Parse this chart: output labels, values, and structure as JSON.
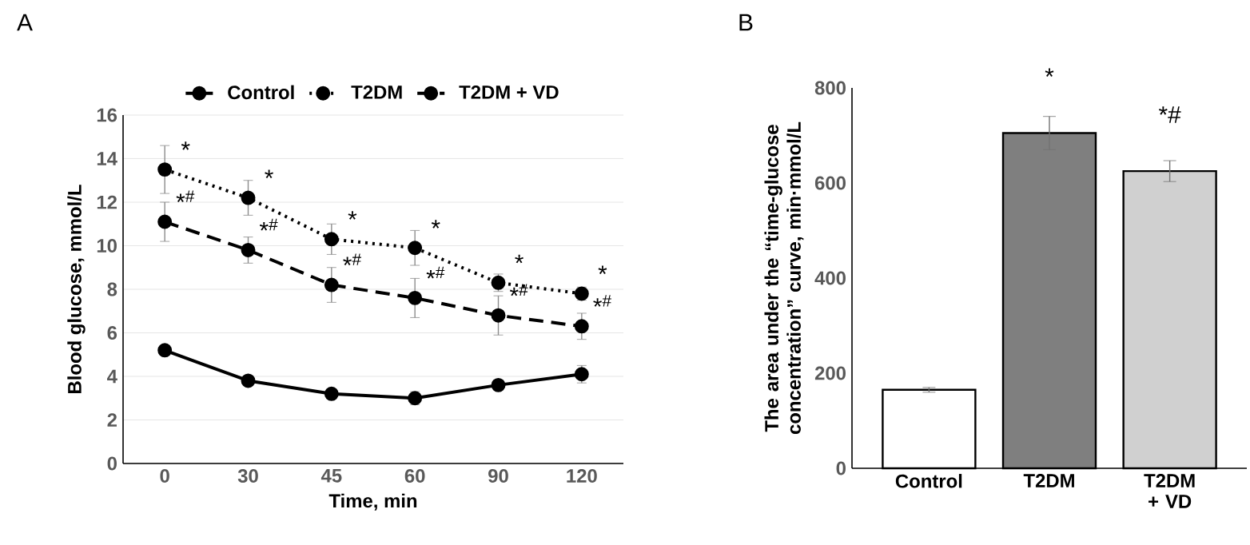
{
  "chart_data": [
    {
      "type": "line",
      "title": "A",
      "xlabel": "Time, min",
      "ylabel": "Blood glucose, mmol/L",
      "categories": [
        "0",
        "30",
        "45",
        "60",
        "90",
        "120"
      ],
      "series": [
        {
          "name": "Control",
          "color": "#000000",
          "line_style": "solid",
          "values": [
            5.2,
            3.8,
            3.2,
            3.0,
            3.6,
            4.1
          ],
          "errors": [
            0.1,
            0.1,
            0.15,
            0.3,
            0.1,
            0.4
          ]
        },
        {
          "name": "T2DM",
          "color": "#000000",
          "line_style": "dotted",
          "values": [
            13.5,
            12.2,
            10.3,
            9.9,
            8.3,
            7.8
          ],
          "errors": [
            1.1,
            0.8,
            0.7,
            0.8,
            0.4,
            0.3
          ]
        },
        {
          "name": "T2DM + VD",
          "color": "#000000",
          "line_style": "dashed",
          "values": [
            11.1,
            9.8,
            8.2,
            7.6,
            6.8,
            6.3
          ],
          "errors": [
            0.9,
            0.6,
            0.8,
            0.9,
            0.9,
            0.6
          ]
        }
      ],
      "ylim": [
        0,
        16
      ],
      "yticks": [
        0,
        2,
        4,
        6,
        8,
        10,
        12,
        14,
        16
      ],
      "grid": "y",
      "legend": "top",
      "marker": "circle",
      "annotations": [
        {
          "text": "*",
          "x": "0",
          "y": 13.5
        },
        {
          "text": "*",
          "x": "30",
          "y": 12.2
        },
        {
          "text": "*",
          "x": "45",
          "y": 10.3
        },
        {
          "text": "*",
          "x": "60",
          "y": 9.9
        },
        {
          "text": "*",
          "x": "90",
          "y": 8.3
        },
        {
          "text": "*",
          "x": "120",
          "y": 7.8
        },
        {
          "text": "*$^{#}$",
          "x": "0",
          "y": 11.1
        },
        {
          "text": "*$^{#}$",
          "x": "30",
          "y": 9.8
        },
        {
          "text": "*$^{#}$",
          "x": "45",
          "y": 8.2
        },
        {
          "text": "*$^{#}$",
          "x": "60",
          "y": 7.6
        },
        {
          "text": "*$^{#}$",
          "x": "90",
          "y": 6.8
        },
        {
          "text": "*$^{#}$",
          "x": "120",
          "y": 6.3
        }
      ]
    },
    {
      "type": "bar",
      "title": "B",
      "ylabel": "The area under the “time-glucose concentration” curve, min·mmol/L",
      "categories": [
        "Control",
        "T2DM",
        "T2DM + VD"
      ],
      "values": [
        165,
        705,
        625
      ],
      "errors": [
        5,
        35,
        22
      ],
      "colors": [
        "#ffffff",
        "#7f7f7f",
        "#d0d0d0"
      ],
      "ylim": [
        0,
        800
      ],
      "yticks": [
        0,
        200,
        400,
        600,
        800
      ],
      "annotations": [
        {
          "text": "*",
          "x": "T2DM",
          "y": 705
        },
        {
          "text": "*#",
          "x": "T2DM + VD",
          "y": 625
        }
      ]
    }
  ]
}
